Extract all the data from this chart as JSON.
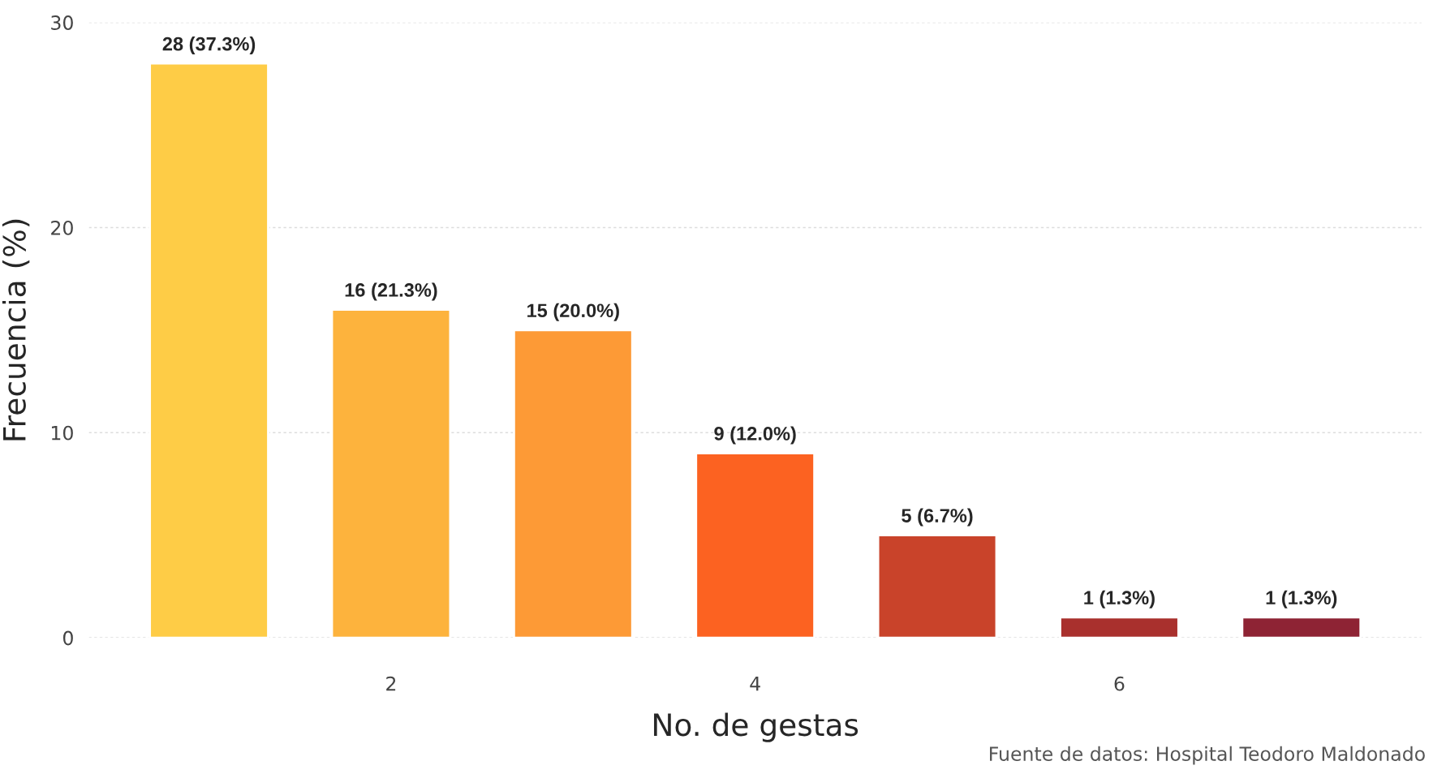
{
  "chart_data": {
    "type": "bar",
    "xlabel": "No. de gestas",
    "ylabel": "Frecuencia (%)",
    "x": [
      1,
      2,
      3,
      4,
      5,
      6,
      7
    ],
    "values": [
      28,
      16,
      15,
      9,
      5,
      1,
      1
    ],
    "colors": [
      "#fecc46",
      "#fdb33d",
      "#fd9a36",
      "#fc6221",
      "#c9432a",
      "#a9302d",
      "#8e2334"
    ],
    "value_labels": [
      "28 (37.3%)",
      "16 (21.3%)",
      "15 (20.0%)",
      "9 (12.0%)",
      "5 (6.7%)",
      "1 (1.3%)",
      "1 (1.3%)"
    ],
    "xlim": [
      0.34,
      7.66
    ],
    "xticks": [
      2,
      4,
      6
    ],
    "ylim": [
      0,
      30
    ],
    "yticks": [
      0,
      10,
      20,
      30
    ],
    "grid": "y",
    "annotations": [
      "Fuente de datos: Hospital Teodoro Maldonado"
    ]
  }
}
